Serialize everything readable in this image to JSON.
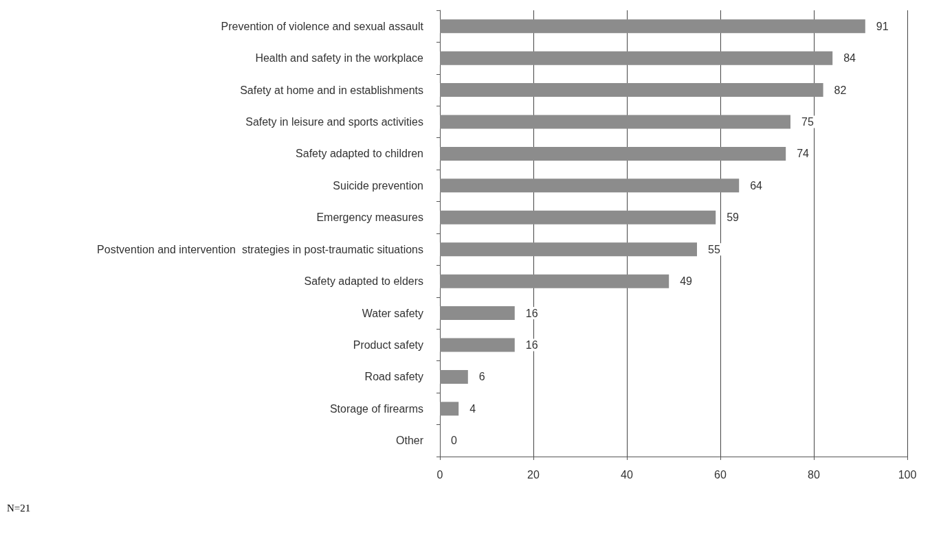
{
  "chart_data": {
    "type": "bar",
    "orientation": "horizontal",
    "categories": [
      "Prevention of violence and sexual assault",
      "Health and safety in the workplace",
      "Safety at home and in establishments",
      "Safety in leisure and sports activities",
      "Safety adapted to children",
      "Suicide prevention",
      "Emergency measures",
      "Postvention and intervention  strategies in post-traumatic situations",
      "Safety adapted to elders",
      "Water safety",
      "Product safety",
      "Road safety",
      "Storage of firearms",
      "Other"
    ],
    "values": [
      91,
      84,
      82,
      75,
      74,
      64,
      59,
      55,
      49,
      16,
      16,
      6,
      4,
      0
    ],
    "color": "#8c8c8c",
    "xlim": [
      0,
      100
    ],
    "xticks": [
      0,
      20,
      40,
      60,
      80,
      100
    ],
    "grid": "x",
    "data_labels": true,
    "annotations": [
      "N=21"
    ]
  }
}
